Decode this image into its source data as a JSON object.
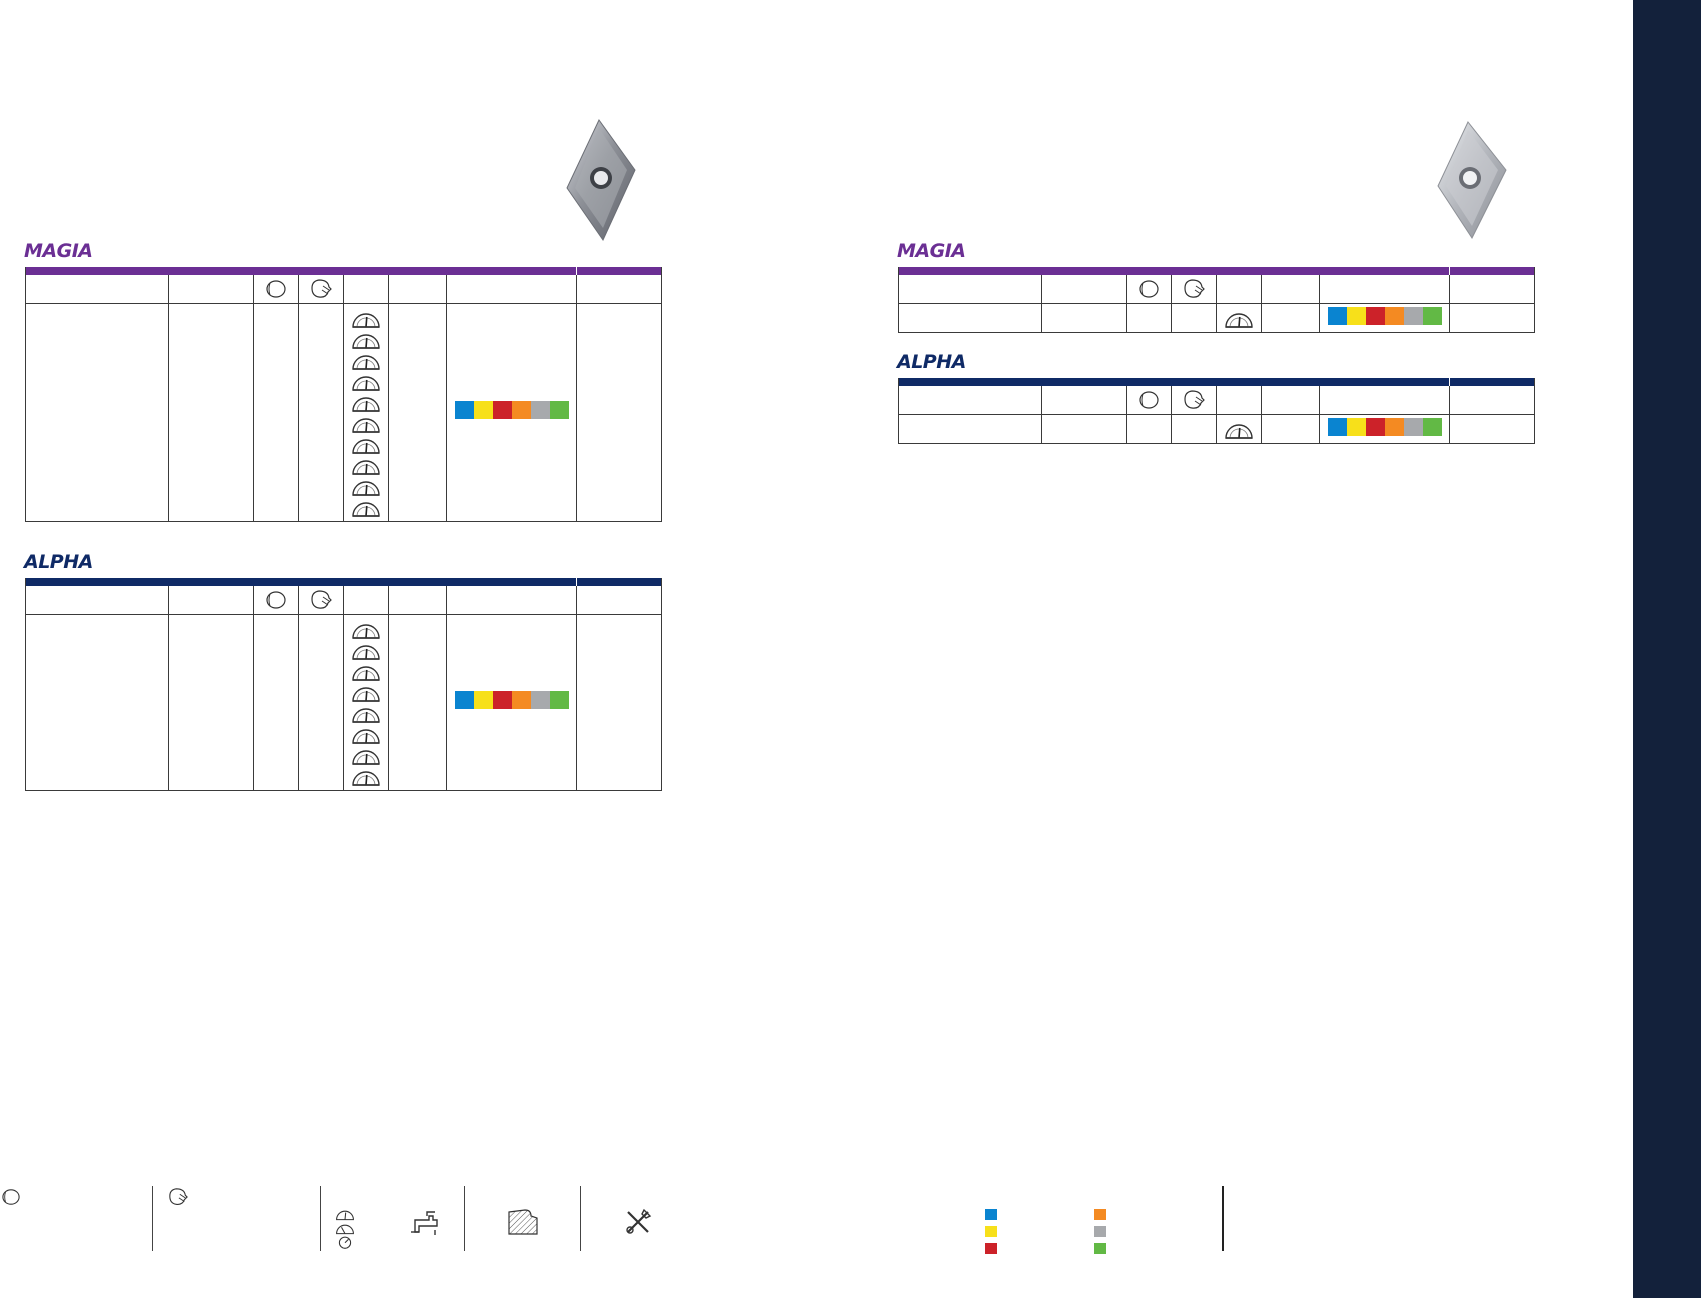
{
  "brands": {
    "left_magia": "MAGIA",
    "left_alpha": "ALPHA",
    "right_magia": "MAGIA",
    "right_alpha": "ALPHA"
  },
  "colors": {
    "magia": "#6b2f94",
    "alpha": "#0f2a66",
    "sidebar": "#13213b",
    "material_groups": [
      "#0a84d0",
      "#f7e01a",
      "#cc2229",
      "#f48a22",
      "#a7a9ac",
      "#62b945"
    ]
  },
  "icons": {
    "header": [
      "roughing-insert-icon",
      "finishing-insert-icon"
    ],
    "row": "speed-gauge-icon",
    "footer": [
      "roughing-insert-icon",
      "finishing-insert-icon",
      "speed-gauge-icon",
      "coolant-tap-icon",
      "workpiece-material-icon",
      "tools-icon"
    ]
  },
  "left_magia_table": {
    "gauge_count": 10
  },
  "left_alpha_table": {
    "gauge_count": 8
  },
  "right_magia_table": {
    "gauge_count": 1
  },
  "right_alpha_table": {
    "gauge_count": 1
  }
}
